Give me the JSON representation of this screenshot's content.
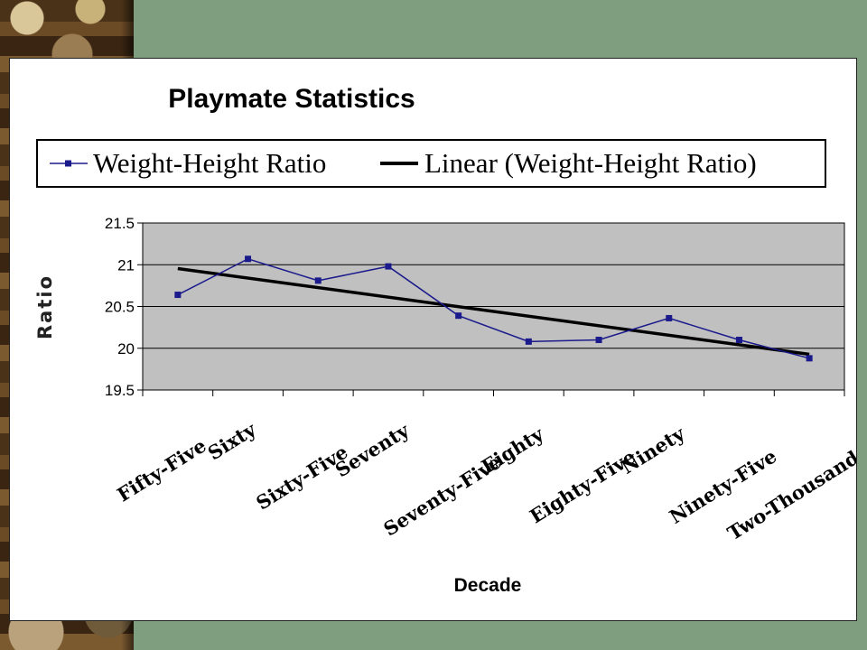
{
  "chart_data": {
    "type": "line",
    "title": "Playmate Statistics",
    "xlabel": "Decade",
    "ylabel": "Ratio",
    "categories": [
      "Fifty-Five",
      "Sixty",
      "Sixty-Five",
      "Seventy",
      "Seventy-Five",
      "Eighty",
      "Eighty-Five",
      "Ninety",
      "Ninety-Five",
      "Two-Thousand"
    ],
    "series": [
      {
        "name": "Weight-Height Ratio",
        "values": [
          20.64,
          21.07,
          20.81,
          20.98,
          20.39,
          20.08,
          20.1,
          20.36,
          20.1,
          19.88
        ],
        "color": "#1a1a8c",
        "marker": "square"
      }
    ],
    "trendline": {
      "name": "Linear (Weight-Height Ratio)",
      "type": "linear",
      "color": "#000000"
    },
    "ylim": [
      19.5,
      21.5
    ],
    "yticks": [
      "19.5",
      "20",
      "20.5",
      "21",
      "21.5"
    ],
    "grid": true,
    "plot_background": "#c0c0c0",
    "legend_position": "top"
  }
}
